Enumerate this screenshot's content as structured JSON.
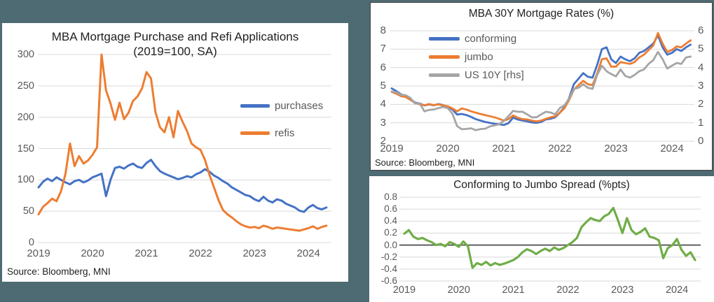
{
  "background_color": "#4e6a73",
  "colors": {
    "blue": "#4472C4",
    "orange": "#ED7D31",
    "gray": "#A5A5A5",
    "green": "#70AD47",
    "gridline": "#D9D9D9",
    "zero_line": "#404040",
    "tick_text": "#595959",
    "title_text": "#1f1f1f"
  },
  "panels": {
    "applications": {
      "title_line1": "MBA Mortgage Purchase and Refi Applications",
      "title_line2": "(2019=100, SA)",
      "source": "Source: Bloomberg, MNI"
    },
    "rates": {
      "title": "MBA 30Y Mortgage Rates (%)",
      "source": "Source: Bloomberg, MNI"
    },
    "spread": {
      "title": "Conforming to Jumbo Spread (%pts)"
    }
  },
  "chart_data": [
    {
      "id": "applications",
      "type": "line",
      "title": "MBA Mortgage Purchase and Refi Applications (2019=100, SA)",
      "source": "Source: Bloomberg, MNI",
      "x_start_year": 2019,
      "x_step_months": 1,
      "xticks": [
        "2019",
        "2020",
        "2021",
        "2022",
        "2023",
        "2024"
      ],
      "ylim": [
        0,
        300
      ],
      "yticks": [
        "0",
        "50",
        "100",
        "150",
        "200",
        "250",
        "300"
      ],
      "legend_position": "center-right",
      "grid": true,
      "series": [
        {
          "name": "purchases",
          "color": "#4472C4",
          "values": [
            88,
            97,
            102,
            98,
            104,
            100,
            96,
            93,
            98,
            100,
            96,
            99,
            104,
            107,
            110,
            74,
            100,
            119,
            121,
            118,
            123,
            126,
            121,
            119,
            127,
            132,
            122,
            114,
            110,
            107,
            104,
            101,
            103,
            106,
            104,
            109,
            112,
            117,
            113,
            107,
            103,
            98,
            94,
            88,
            84,
            80,
            76,
            74,
            69,
            66,
            73,
            67,
            64,
            69,
            67,
            62,
            59,
            56,
            51,
            49,
            56,
            60,
            55,
            53,
            56
          ]
        },
        {
          "name": "refis",
          "color": "#ED7D31",
          "values": [
            45,
            57,
            63,
            70,
            66,
            82,
            110,
            158,
            122,
            138,
            126,
            131,
            140,
            152,
            300,
            243,
            222,
            196,
            223,
            197,
            207,
            226,
            233,
            246,
            272,
            262,
            208,
            184,
            176,
            200,
            168,
            210,
            193,
            178,
            158,
            152,
            148,
            132,
            108,
            88,
            68,
            52,
            45,
            40,
            34,
            29,
            26,
            24,
            25,
            23,
            27,
            25,
            22,
            24,
            23,
            22,
            21,
            20,
            19,
            21,
            23,
            26,
            22,
            25,
            27
          ]
        }
      ]
    },
    {
      "id": "rates",
      "type": "line",
      "title": "MBA 30Y Mortgage Rates (%)",
      "source": "Source: Bloomberg, MNI",
      "x_start_year": 2019,
      "x_step_months": 1,
      "xticks": [
        "2019",
        "2020",
        "2021",
        "2022",
        "2023",
        "2024"
      ],
      "ylim": [
        2,
        8
      ],
      "yticks": [
        "2",
        "3",
        "4",
        "5",
        "6",
        "7",
        "8"
      ],
      "ylim_right": [
        0,
        6
      ],
      "yticks_right": [
        "0",
        "1",
        "2",
        "3",
        "4",
        "5",
        "6"
      ],
      "legend_position": "top-left",
      "grid": true,
      "series": [
        {
          "name": "conforming",
          "color": "#4472C4",
          "axis": "left",
          "values": [
            4.87,
            4.72,
            4.55,
            4.45,
            4.28,
            4.1,
            4.05,
            3.94,
            4.0,
            3.95,
            4.02,
            3.96,
            3.87,
            3.72,
            3.45,
            3.48,
            3.42,
            3.32,
            3.2,
            3.12,
            3.05,
            3.0,
            2.95,
            2.92,
            2.88,
            2.98,
            3.28,
            3.18,
            3.12,
            3.08,
            3.02,
            3.0,
            3.05,
            3.18,
            3.22,
            3.3,
            3.55,
            3.85,
            4.35,
            5.1,
            5.4,
            5.7,
            5.5,
            5.45,
            6.15,
            7.0,
            7.1,
            6.45,
            6.25,
            6.6,
            6.45,
            6.35,
            6.5,
            6.8,
            6.9,
            7.1,
            7.3,
            7.75,
            7.1,
            6.7,
            6.8,
            7.0,
            6.9,
            7.1,
            7.25
          ]
        },
        {
          "name": "jumbo",
          "color": "#ED7D31",
          "axis": "left",
          "values": [
            4.68,
            4.58,
            4.45,
            4.4,
            4.25,
            4.08,
            4.0,
            3.95,
            4.02,
            3.96,
            4.0,
            3.94,
            3.9,
            3.78,
            3.62,
            3.78,
            3.72,
            3.62,
            3.55,
            3.48,
            3.42,
            3.36,
            3.3,
            3.22,
            3.12,
            3.2,
            3.4,
            3.28,
            3.2,
            3.18,
            3.12,
            3.08,
            3.12,
            3.22,
            3.3,
            3.35,
            3.55,
            3.8,
            4.25,
            4.8,
            5.05,
            5.28,
            5.1,
            5.05,
            5.68,
            6.45,
            6.5,
            6.05,
            6.05,
            6.3,
            6.25,
            6.2,
            6.3,
            6.55,
            6.7,
            6.95,
            7.2,
            7.88,
            7.3,
            6.85,
            6.95,
            7.15,
            7.1,
            7.3,
            7.48
          ]
        },
        {
          "name": "US 10Y [rhs]",
          "color": "#A5A5A5",
          "axis": "right",
          "values": [
            2.7,
            2.66,
            2.52,
            2.5,
            2.35,
            2.05,
            2.06,
            1.62,
            1.7,
            1.72,
            1.8,
            1.86,
            1.8,
            1.5,
            0.82,
            0.65,
            0.67,
            0.7,
            0.6,
            0.66,
            0.68,
            0.8,
            0.86,
            0.92,
            1.1,
            1.36,
            1.65,
            1.6,
            1.6,
            1.46,
            1.3,
            1.3,
            1.46,
            1.6,
            1.56,
            1.46,
            1.8,
            1.95,
            2.32,
            2.85,
            2.9,
            3.1,
            2.9,
            2.85,
            3.6,
            4.1,
            3.8,
            3.65,
            3.52,
            3.9,
            3.55,
            3.45,
            3.6,
            3.8,
            3.9,
            4.2,
            4.4,
            4.85,
            4.45,
            3.95,
            4.1,
            4.25,
            4.2,
            4.55,
            4.6
          ]
        }
      ]
    },
    {
      "id": "spread",
      "type": "line",
      "title": "Conforming to Jumbo Spread (%pts)",
      "x_start_year": 2019,
      "x_step_months": 1,
      "xticks": [
        "2019",
        "2020",
        "2021",
        "2022",
        "2023",
        "2024"
      ],
      "ylim": [
        -0.6,
        0.8
      ],
      "yticks": [
        "-0.6",
        "-0.4",
        "-0.2",
        "0.0",
        "0.2",
        "0.4",
        "0.6",
        "0.8"
      ],
      "zero_line": true,
      "grid": true,
      "series": [
        {
          "name": "spread",
          "color": "#70AD47",
          "values": [
            0.19,
            0.25,
            0.14,
            0.1,
            0.12,
            0.08,
            0.05,
            0.0,
            0.02,
            -0.02,
            0.05,
            0.02,
            -0.03,
            0.06,
            -0.02,
            -0.38,
            -0.3,
            -0.33,
            -0.28,
            -0.34,
            -0.3,
            -0.33,
            -0.31,
            -0.28,
            -0.25,
            -0.2,
            -0.12,
            -0.07,
            -0.1,
            -0.15,
            -0.1,
            -0.06,
            -0.1,
            -0.04,
            -0.08,
            -0.05,
            0.0,
            0.05,
            0.12,
            0.3,
            0.38,
            0.45,
            0.42,
            0.4,
            0.48,
            0.52,
            0.62,
            0.42,
            0.2,
            0.45,
            0.25,
            0.18,
            0.22,
            0.28,
            0.14,
            0.12,
            0.08,
            -0.22,
            -0.05,
            0.0,
            0.1,
            -0.08,
            -0.18,
            -0.12,
            -0.25
          ]
        }
      ]
    }
  ]
}
